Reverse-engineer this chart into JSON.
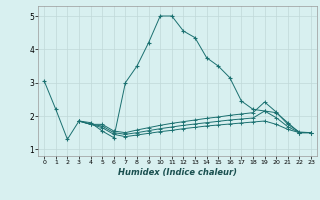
{
  "xlabel": "Humidex (Indice chaleur)",
  "bg_color": "#d8f0f0",
  "grid_color": "#c0d8d8",
  "line_color": "#1a7070",
  "xlim": [
    -0.5,
    23.5
  ],
  "ylim": [
    0.8,
    5.3
  ],
  "yticks": [
    1,
    2,
    3,
    4,
    5
  ],
  "xticks": [
    0,
    1,
    2,
    3,
    4,
    5,
    6,
    7,
    8,
    9,
    10,
    11,
    12,
    13,
    14,
    15,
    16,
    17,
    18,
    19,
    20,
    21,
    22,
    23
  ],
  "series": [
    [
      0,
      3.05
    ],
    [
      1,
      2.2
    ],
    [
      2,
      1.3
    ],
    [
      3,
      1.85
    ],
    [
      4,
      1.8
    ],
    [
      5,
      1.55
    ],
    [
      6,
      1.35
    ],
    [
      7,
      3.0
    ],
    [
      8,
      3.5
    ],
    [
      9,
      4.2
    ],
    [
      10,
      5.0
    ],
    [
      11,
      5.0
    ],
    [
      12,
      4.55
    ],
    [
      13,
      4.35
    ],
    [
      14,
      3.75
    ],
    [
      15,
      3.5
    ],
    [
      16,
      3.15
    ],
    [
      17,
      2.45
    ],
    [
      18,
      2.2
    ],
    [
      19,
      2.15
    ],
    [
      20,
      2.1
    ],
    [
      21,
      1.8
    ],
    [
      22,
      1.5
    ],
    [
      23,
      1.5
    ]
  ],
  "series2": [
    [
      3,
      1.85
    ],
    [
      4,
      1.75
    ],
    [
      5,
      1.75
    ],
    [
      6,
      1.55
    ],
    [
      7,
      1.5
    ],
    [
      8,
      1.58
    ],
    [
      9,
      1.65
    ],
    [
      10,
      1.72
    ],
    [
      11,
      1.78
    ],
    [
      12,
      1.83
    ],
    [
      13,
      1.88
    ],
    [
      14,
      1.93
    ],
    [
      15,
      1.97
    ],
    [
      16,
      2.02
    ],
    [
      17,
      2.06
    ],
    [
      18,
      2.1
    ],
    [
      19,
      2.42
    ],
    [
      20,
      2.12
    ],
    [
      21,
      1.75
    ],
    [
      22,
      1.52
    ],
    [
      23,
      1.5
    ]
  ],
  "series3": [
    [
      3,
      1.85
    ],
    [
      4,
      1.75
    ],
    [
      5,
      1.7
    ],
    [
      6,
      1.5
    ],
    [
      7,
      1.45
    ],
    [
      8,
      1.5
    ],
    [
      9,
      1.56
    ],
    [
      10,
      1.62
    ],
    [
      11,
      1.67
    ],
    [
      12,
      1.72
    ],
    [
      13,
      1.76
    ],
    [
      14,
      1.8
    ],
    [
      15,
      1.84
    ],
    [
      16,
      1.88
    ],
    [
      17,
      1.91
    ],
    [
      18,
      1.94
    ],
    [
      19,
      2.15
    ],
    [
      20,
      1.95
    ],
    [
      21,
      1.68
    ],
    [
      22,
      1.5
    ],
    [
      23,
      1.5
    ]
  ],
  "series4": [
    [
      3,
      1.85
    ],
    [
      4,
      1.75
    ],
    [
      5,
      1.65
    ],
    [
      6,
      1.45
    ],
    [
      7,
      1.38
    ],
    [
      8,
      1.43
    ],
    [
      9,
      1.48
    ],
    [
      10,
      1.53
    ],
    [
      11,
      1.57
    ],
    [
      12,
      1.62
    ],
    [
      13,
      1.66
    ],
    [
      14,
      1.7
    ],
    [
      15,
      1.73
    ],
    [
      16,
      1.76
    ],
    [
      17,
      1.79
    ],
    [
      18,
      1.82
    ],
    [
      19,
      1.85
    ],
    [
      20,
      1.75
    ],
    [
      21,
      1.6
    ],
    [
      22,
      1.5
    ],
    [
      23,
      1.5
    ]
  ]
}
